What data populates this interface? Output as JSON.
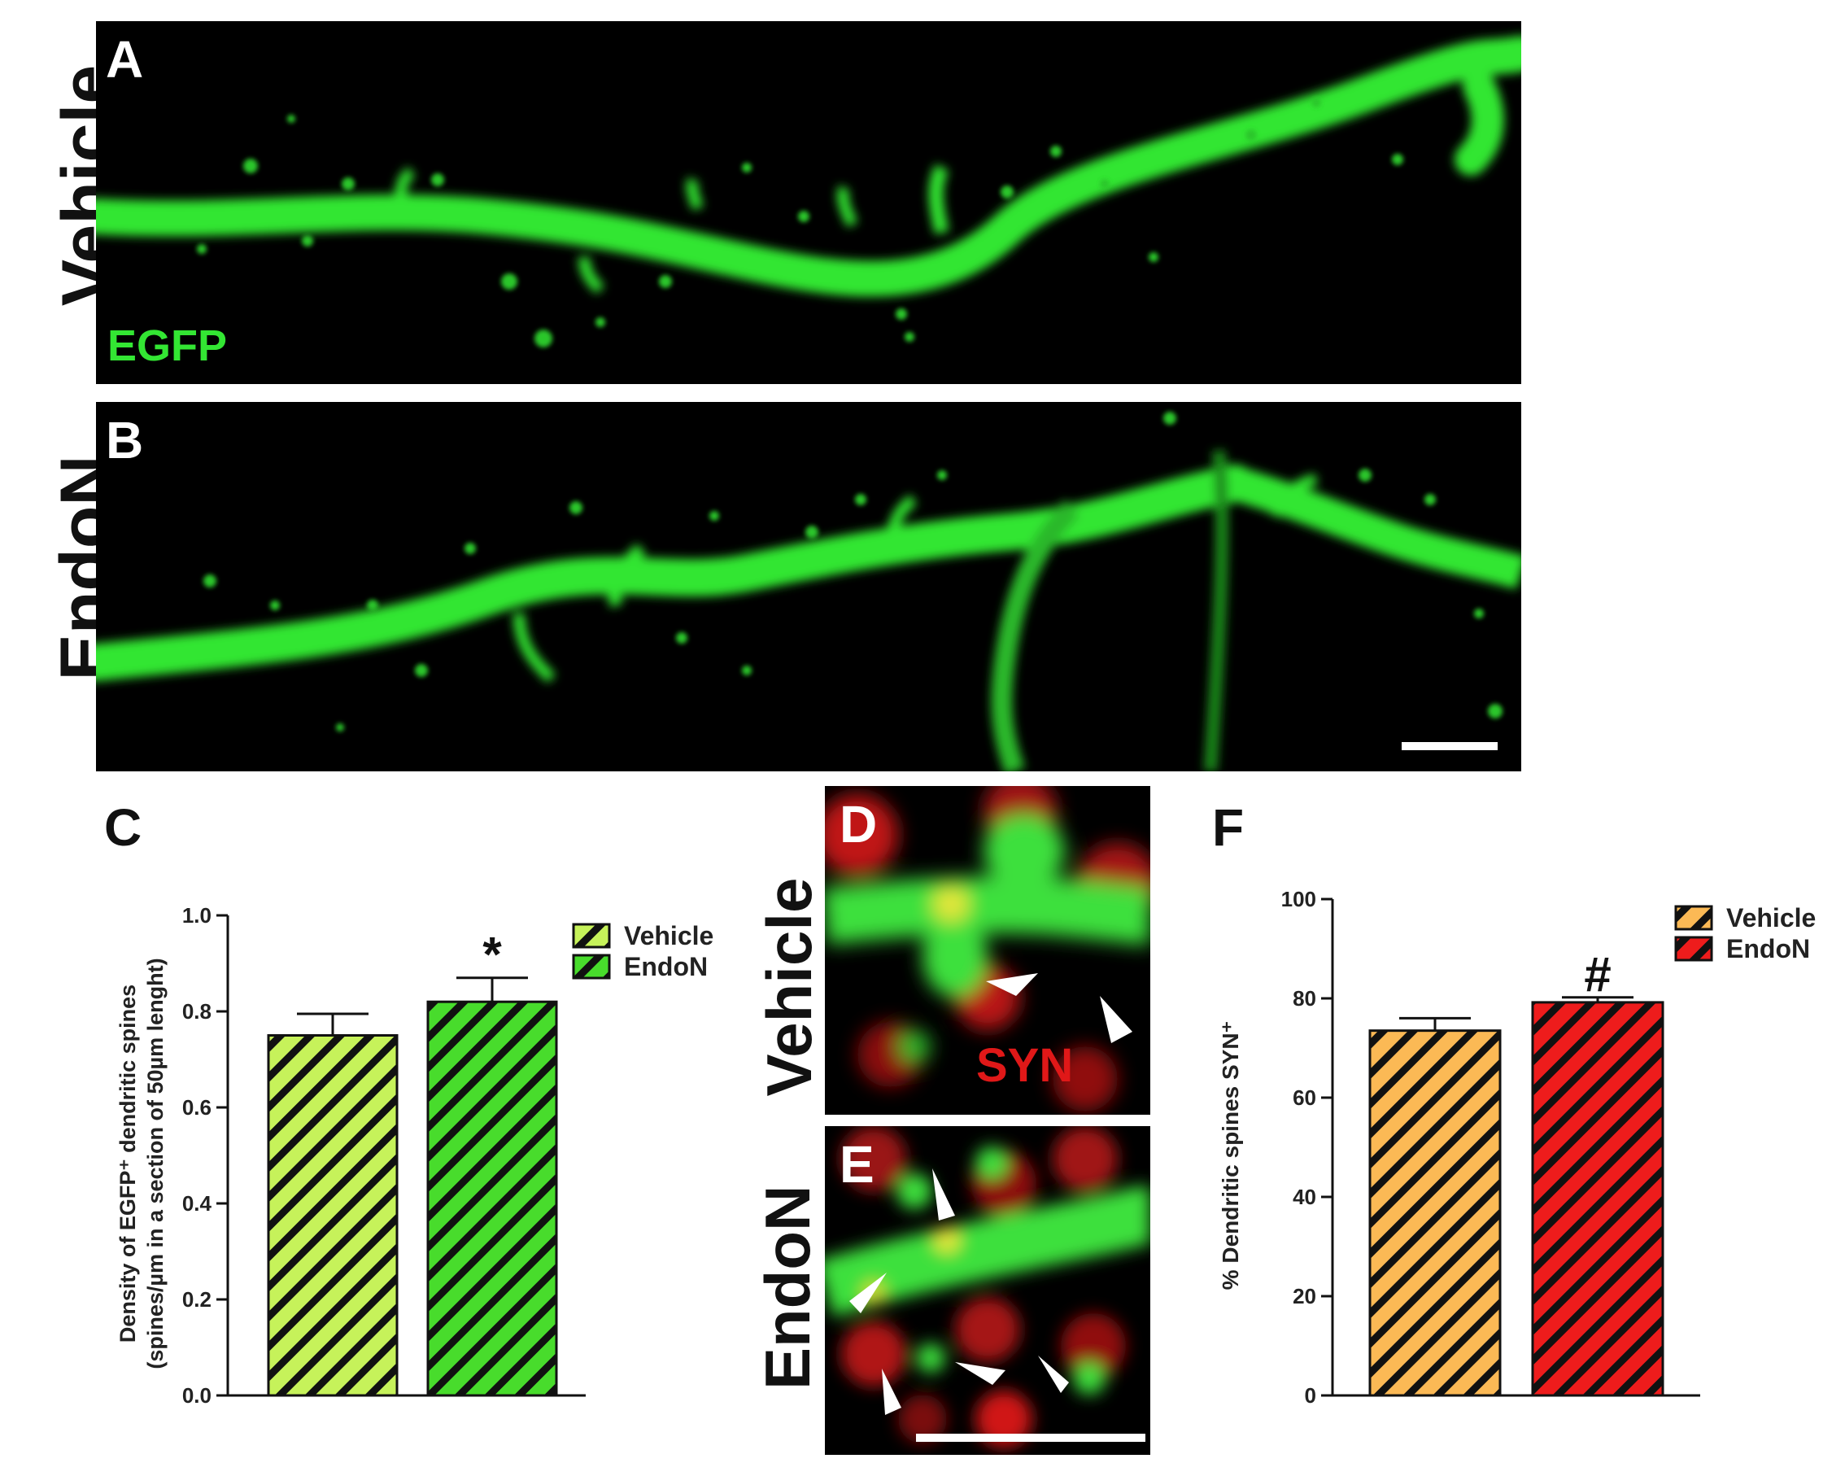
{
  "panels": {
    "A": {
      "letter": "A",
      "row_label": "Vehicle",
      "stain_label": "EGFP"
    },
    "B": {
      "letter": "B",
      "row_label": "EndoN"
    },
    "C": {
      "letter": "C"
    },
    "D": {
      "letter": "D",
      "row_label": "Vehicle",
      "stain_label": "SYN"
    },
    "E": {
      "letter": "E",
      "row_label": "EndoN"
    },
    "F": {
      "letter": "F"
    }
  },
  "colors": {
    "egfp": "#33e633",
    "syn": "#e01818",
    "vehicle_C": "#c6f25a",
    "endoN_C": "#48dc2c",
    "vehicle_F": "#fbb955",
    "endoN_F": "#ee1c1c"
  },
  "chart_data": [
    {
      "id": "C",
      "type": "bar",
      "categories": [
        "Vehicle",
        "EndoN"
      ],
      "values": [
        0.75,
        0.82
      ],
      "errors": [
        0.045,
        0.05
      ],
      "significance": [
        "",
        "*"
      ],
      "ylabel_line1": "Density of EGFP⁺ dendritic spines",
      "ylabel_line2": "(spines/µm in a section of 50µm lenght)",
      "ylim": [
        0.0,
        1.0
      ],
      "yticks": [
        "0.0",
        "0.2",
        "0.4",
        "0.6",
        "0.8",
        "1.0"
      ],
      "legend": [
        "Vehicle",
        "EndoN"
      ],
      "legend_position": "top-right",
      "grid": false
    },
    {
      "id": "F",
      "type": "bar",
      "categories": [
        "Vehicle",
        "EndoN"
      ],
      "values": [
        73.5,
        79.2
      ],
      "errors": [
        2.5,
        1.0
      ],
      "significance": [
        "",
        "#"
      ],
      "ylabel": "% Dendritic spines SYN⁺",
      "ylim": [
        0,
        100
      ],
      "yticks": [
        "0",
        "20",
        "40",
        "60",
        "80",
        "100"
      ],
      "legend": [
        "Vehicle",
        "EndoN"
      ],
      "legend_position": "top-right",
      "grid": false
    }
  ]
}
